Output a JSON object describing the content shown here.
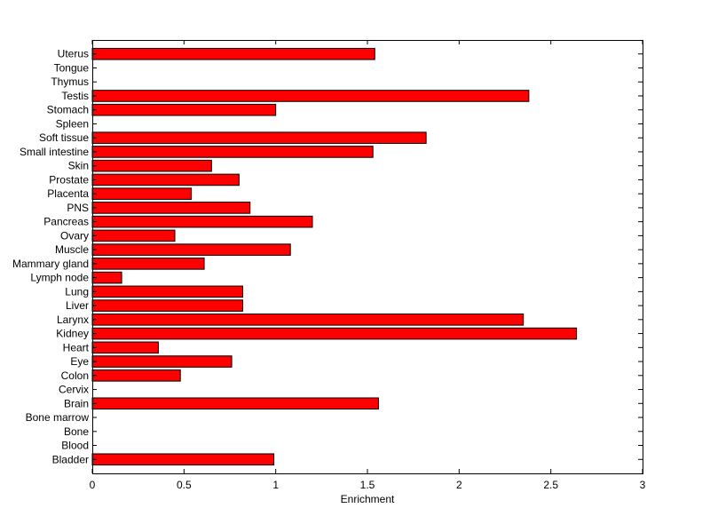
{
  "chart_data": {
    "type": "bar",
    "orientation": "horizontal",
    "title": "",
    "xlabel": "Enrichment",
    "ylabel": "",
    "xlim": [
      0,
      3
    ],
    "xticks": [
      "0",
      "0.5",
      "1",
      "1.5",
      "2",
      "2.5",
      "3"
    ],
    "grid": false,
    "bar_color": "#ff0000",
    "bar_edge_color": "#000000",
    "categories": [
      "Bladder",
      "Blood",
      "Bone",
      "Bone marrow",
      "Brain",
      "Cervix",
      "Colon",
      "Eye",
      "Heart",
      "Kidney",
      "Larynx",
      "Liver",
      "Lung",
      "Lymph node",
      "Mammary gland",
      "Muscle",
      "Ovary",
      "Pancreas",
      "PNS",
      "Placenta",
      "Prostate",
      "Skin",
      "Small intestine",
      "Soft tissue",
      "Spleen",
      "Stomach",
      "Testis",
      "Thymus",
      "Tongue",
      "Uterus"
    ],
    "values": [
      0.99,
      0,
      0,
      0,
      1.56,
      0,
      0.48,
      0.76,
      0.36,
      2.64,
      2.35,
      0.82,
      0.82,
      0.16,
      0.61,
      1.08,
      0.45,
      1.2,
      0.86,
      0.54,
      0.8,
      0.65,
      1.53,
      1.82,
      0,
      1.0,
      2.38,
      0,
      0,
      1.54
    ]
  }
}
